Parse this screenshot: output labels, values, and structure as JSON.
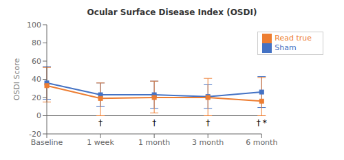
{
  "chart_data": {
    "type": "line",
    "title": "Ocular Surface Disease Index (OSDI)",
    "y_label": "OSDI Score",
    "categories": [
      "Baseline",
      "1 week",
      "1 month",
      "3 month",
      "6 month"
    ],
    "series": [
      {
        "name": "Sham",
        "color": "#4472c4",
        "marker": "square",
        "values": [
          36,
          23,
          23,
          21,
          26
        ],
        "errors": [
          18,
          13,
          15,
          13,
          17
        ]
      },
      {
        "name": "Read true",
        "color": "#ed7d31",
        "marker": "square",
        "values": [
          33,
          19,
          20,
          20,
          16
        ],
        "errors_lower": [
          18,
          19,
          17,
          20,
          16
        ],
        "errors_upper": [
          20,
          17,
          18,
          21,
          26
        ]
      }
    ],
    "ylim": [
      -20,
      100
    ],
    "yticks": [
      -20,
      0,
      20,
      40,
      60,
      80,
      100
    ],
    "legend": "upper right",
    "annotations": [
      {
        "text": "†",
        "category": "1 week"
      },
      {
        "text": "†",
        "category": "1 month"
      },
      {
        "text": "†",
        "category": "3 month"
      },
      {
        "text": "†",
        "category": "6 month"
      },
      {
        "text": "*",
        "category": "6 month"
      }
    ]
  }
}
